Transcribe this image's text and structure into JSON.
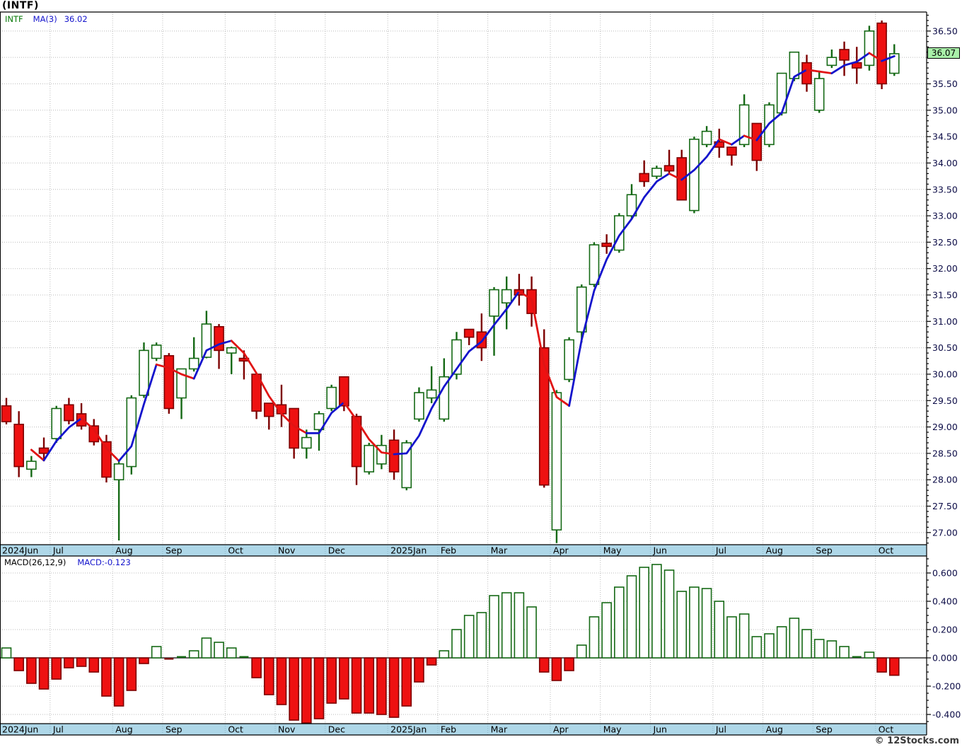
{
  "header": {
    "title": "(INTF)"
  },
  "main_legend": {
    "symbol": "INTF",
    "ma_label": "MA(3)",
    "ma_value": "36.02"
  },
  "macd_legend": {
    "label": "MACD(26,12,9)",
    "value_label": "MACD:-0.123"
  },
  "price_badge": {
    "value": "36.07"
  },
  "watermark": "© 12Stocks.com",
  "colors": {
    "candle_down_fill": "#ee1111",
    "candle_down_edge": "#7d0000",
    "candle_up_fill": "#ffffff",
    "candle_up_edge": "#156915",
    "ma_up": "#1414cc",
    "ma_down": "#e01414",
    "grid": "#bbbbbb",
    "strip": "#aed7e8",
    "axis_text": "#0b0b46",
    "month_text": "#000000",
    "badge_bg": "#a9f0a9",
    "legend_symbol_color": "#067806",
    "legend_value_color": "#1414cc",
    "watermark_color": "#3a3a3a",
    "border": "#000000"
  },
  "chart_data": [
    {
      "type": "candlestick",
      "title": "(INTF) weekly candlesticks with MA(3) overlay",
      "legend": [
        "INTF",
        "MA(3) 36.02"
      ],
      "grid": "dotted",
      "y_axis": {
        "side": "right",
        "range": [
          26.77,
          36.86
        ],
        "tick_step": 0.5,
        "visible_tick_labels": [
          "36.50",
          "35.50",
          "35.00",
          "34.50",
          "34.00",
          "33.50",
          "33.00",
          "32.50",
          "32.00",
          "31.50",
          "31.00",
          "30.50",
          "30.00",
          "29.50",
          "29.00",
          "28.50",
          "28.00",
          "27.50",
          "27.00"
        ],
        "tick_hidden_behind_badge": "36.00",
        "minor_tick_step": 0.1
      },
      "x_axis": {
        "month_labels": [
          {
            "label": "2024Jun",
            "week": 0
          },
          {
            "label": "Jul",
            "week": 4
          },
          {
            "label": "Aug",
            "week": 9
          },
          {
            "label": "Sep",
            "week": 13
          },
          {
            "label": "Oct",
            "week": 18
          },
          {
            "label": "Nov",
            "week": 22
          },
          {
            "label": "Dec",
            "week": 26
          },
          {
            "label": "2025Jan",
            "week": 31
          },
          {
            "label": "Feb",
            "week": 35
          },
          {
            "label": "Mar",
            "week": 39
          },
          {
            "label": "Apr",
            "week": 44
          },
          {
            "label": "May",
            "week": 48
          },
          {
            "label": "Jun",
            "week": 52
          },
          {
            "label": "Jul",
            "week": 57
          },
          {
            "label": "Aug",
            "week": 61
          },
          {
            "label": "Sep",
            "week": 65
          },
          {
            "label": "Oct",
            "week": 70
          }
        ]
      },
      "last_price": 36.07,
      "ma3_last": 36.02,
      "candles_ohlc": [
        [
          29.4,
          29.55,
          29.05,
          29.1
        ],
        [
          29.05,
          29.3,
          28.05,
          28.25
        ],
        [
          28.2,
          28.45,
          28.05,
          28.35
        ],
        [
          28.6,
          28.8,
          28.35,
          28.5
        ],
        [
          28.78,
          29.4,
          28.7,
          29.35
        ],
        [
          29.42,
          29.55,
          29.05,
          29.12
        ],
        [
          29.25,
          29.45,
          28.95,
          29.02
        ],
        [
          29.02,
          29.15,
          28.65,
          28.72
        ],
        [
          28.72,
          28.85,
          27.95,
          28.05
        ],
        [
          28.0,
          28.35,
          26.85,
          28.3
        ],
        [
          28.25,
          29.6,
          28.1,
          29.55
        ],
        [
          29.6,
          30.6,
          29.55,
          30.45
        ],
        [
          30.3,
          30.6,
          30.25,
          30.55
        ],
        [
          30.35,
          30.4,
          29.25,
          29.35
        ],
        [
          29.55,
          30.1,
          29.15,
          30.1
        ],
        [
          30.1,
          30.7,
          30.05,
          30.3
        ],
        [
          30.32,
          31.2,
          30.3,
          30.95
        ],
        [
          30.9,
          30.95,
          30.1,
          30.45
        ],
        [
          30.4,
          30.52,
          30.0,
          30.5
        ],
        [
          30.3,
          30.45,
          29.9,
          30.25
        ],
        [
          30.0,
          30.02,
          29.15,
          29.3
        ],
        [
          29.45,
          29.45,
          28.95,
          29.2
        ],
        [
          29.42,
          29.8,
          29.0,
          29.25
        ],
        [
          29.35,
          29.35,
          28.4,
          28.6
        ],
        [
          28.6,
          28.95,
          28.4,
          28.8
        ],
        [
          28.95,
          29.3,
          28.55,
          29.25
        ],
        [
          29.35,
          29.8,
          29.3,
          29.75
        ],
        [
          29.95,
          29.95,
          29.3,
          29.4
        ],
        [
          29.2,
          29.25,
          27.9,
          28.25
        ],
        [
          28.15,
          28.7,
          28.1,
          28.65
        ],
        [
          28.3,
          28.85,
          28.2,
          28.65
        ],
        [
          28.75,
          28.95,
          28.0,
          28.15
        ],
        [
          27.85,
          28.75,
          27.8,
          28.7
        ],
        [
          29.15,
          29.75,
          29.1,
          29.65
        ],
        [
          29.55,
          30.15,
          29.45,
          29.7
        ],
        [
          29.15,
          30.3,
          29.1,
          29.95
        ],
        [
          30.0,
          30.8,
          29.9,
          30.65
        ],
        [
          30.85,
          30.85,
          30.55,
          30.7
        ],
        [
          30.8,
          31.15,
          30.25,
          30.5
        ],
        [
          31.1,
          31.65,
          30.35,
          31.6
        ],
        [
          31.35,
          31.85,
          30.85,
          31.6
        ],
        [
          31.6,
          31.9,
          31.3,
          31.5
        ],
        [
          31.6,
          31.85,
          30.9,
          31.15
        ],
        [
          30.5,
          30.85,
          27.85,
          27.9
        ],
        [
          27.05,
          29.7,
          26.8,
          29.65
        ],
        [
          29.9,
          30.7,
          29.85,
          30.65
        ],
        [
          30.8,
          31.7,
          30.6,
          31.65
        ],
        [
          31.7,
          32.5,
          31.65,
          32.45
        ],
        [
          32.48,
          32.65,
          32.28,
          32.42
        ],
        [
          32.35,
          33.05,
          32.3,
          33.0
        ],
        [
          33.0,
          33.6,
          32.95,
          33.4
        ],
        [
          33.8,
          34.05,
          33.55,
          33.65
        ],
        [
          33.75,
          33.95,
          33.7,
          33.9
        ],
        [
          33.95,
          34.25,
          33.8,
          33.85
        ],
        [
          34.1,
          34.25,
          33.3,
          33.3
        ],
        [
          33.1,
          34.5,
          33.05,
          34.45
        ],
        [
          34.35,
          34.7,
          34.3,
          34.6
        ],
        [
          34.4,
          34.65,
          34.1,
          34.3
        ],
        [
          34.3,
          34.3,
          33.95,
          34.15
        ],
        [
          34.35,
          35.3,
          34.3,
          35.1
        ],
        [
          34.75,
          34.75,
          33.85,
          34.05
        ],
        [
          34.35,
          35.15,
          34.3,
          35.1
        ],
        [
          34.95,
          35.7,
          34.9,
          35.7
        ],
        [
          35.6,
          36.1,
          35.55,
          36.1
        ],
        [
          35.9,
          36.05,
          35.35,
          35.5
        ],
        [
          35.0,
          35.75,
          34.95,
          35.6
        ],
        [
          35.85,
          36.15,
          35.8,
          36.0
        ],
        [
          36.15,
          36.3,
          35.65,
          35.95
        ],
        [
          35.9,
          36.2,
          35.5,
          35.8
        ],
        [
          35.85,
          36.6,
          35.75,
          36.5
        ],
        [
          36.65,
          36.7,
          35.4,
          35.5
        ],
        [
          35.7,
          36.25,
          35.65,
          36.07
        ]
      ]
    },
    {
      "type": "bar",
      "title": "MACD(26,12,9)",
      "grid": "dotted",
      "y_axis": {
        "side": "right",
        "range": [
          -0.52,
          0.72
        ],
        "tick_step": 0.2,
        "tick_labels": [
          "0.600",
          "0.400",
          "0.200",
          "0.000",
          "-0.200",
          "-0.400"
        ],
        "minor_tick_step": 0.05
      },
      "last_value": -0.123,
      "values": [
        0.07,
        -0.09,
        -0.18,
        -0.22,
        -0.15,
        -0.07,
        -0.06,
        -0.1,
        -0.27,
        -0.34,
        -0.23,
        -0.04,
        0.08,
        -0.01,
        0.01,
        0.05,
        0.14,
        0.11,
        0.07,
        0.01,
        -0.14,
        -0.26,
        -0.33,
        -0.44,
        -0.46,
        -0.43,
        -0.32,
        -0.29,
        -0.39,
        -0.39,
        -0.4,
        -0.42,
        -0.34,
        -0.17,
        -0.05,
        0.05,
        0.2,
        0.3,
        0.32,
        0.44,
        0.46,
        0.46,
        0.36,
        -0.1,
        -0.16,
        -0.09,
        0.09,
        0.29,
        0.39,
        0.5,
        0.58,
        0.64,
        0.66,
        0.62,
        0.47,
        0.5,
        0.49,
        0.4,
        0.29,
        0.31,
        0.15,
        0.17,
        0.22,
        0.28,
        0.2,
        0.13,
        0.12,
        0.08,
        0.01,
        0.04,
        -0.1,
        -0.123
      ]
    }
  ]
}
